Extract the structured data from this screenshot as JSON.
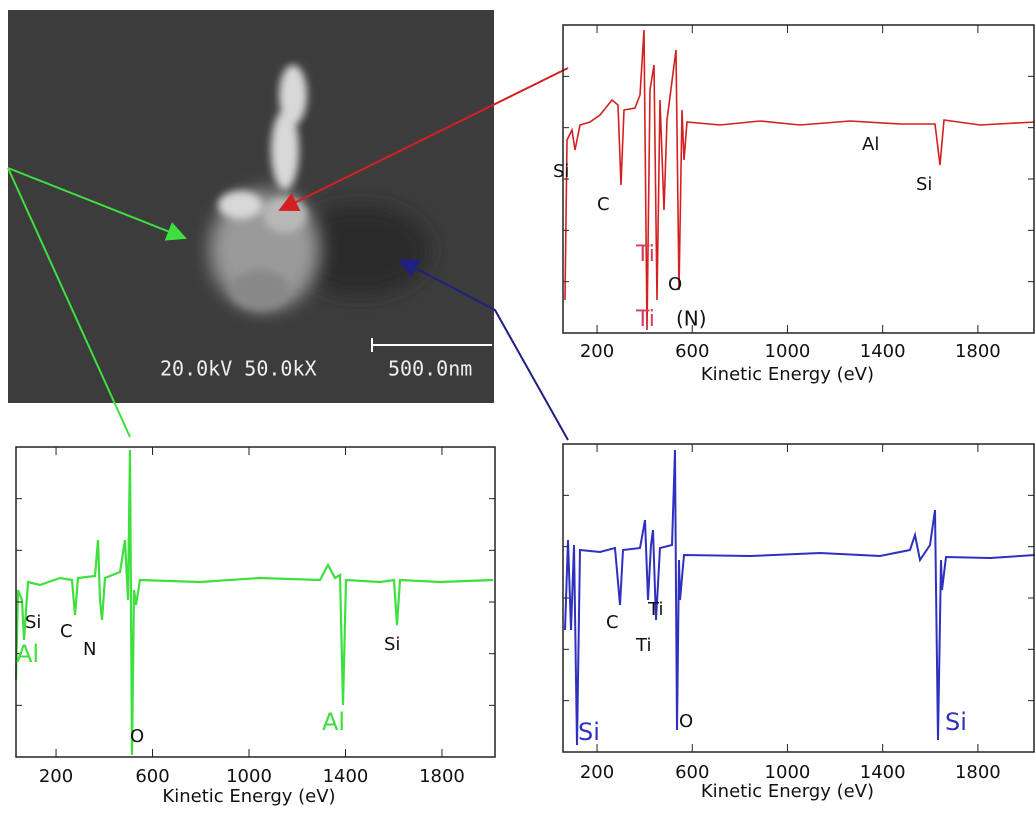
{
  "image": {
    "voltage_magnification": "20.0kV 50.0kX",
    "scale_bar": "500.0nm"
  },
  "chart_data": [
    {
      "type": "line",
      "color": "#d42020",
      "xlabel": "Kinetic Energy (eV)",
      "xlim": [
        57,
        2040
      ],
      "xticks": [
        200,
        600,
        1000,
        1400,
        1800
      ],
      "annotations": [
        {
          "label": "Si",
          "color": "#111"
        },
        {
          "label": "C",
          "color": "#111"
        },
        {
          "label": "Ti",
          "color": "#d04060"
        },
        {
          "label": "O",
          "color": "#111"
        },
        {
          "label": "Ti",
          "color": "#d04060"
        },
        {
          "label": "(N)",
          "color": "#111"
        },
        {
          "label": "Al",
          "color": "#111"
        },
        {
          "label": "Si",
          "color": "#111"
        }
      ]
    },
    {
      "type": "line",
      "color": "#3ee03e",
      "xlabel": "Kinetic Energy (eV)",
      "xlim": [
        34,
        2024
      ],
      "xticks": [
        200,
        600,
        1000,
        1400,
        1800
      ],
      "annotations": [
        {
          "label": "Si",
          "color": "#111"
        },
        {
          "label": "C",
          "color": "#111"
        },
        {
          "label": "N",
          "color": "#111"
        },
        {
          "label": "Al",
          "color": "#3ee03e"
        },
        {
          "label": "O",
          "color": "#111"
        },
        {
          "label": "Al",
          "color": "#3ee03e"
        },
        {
          "label": "Si",
          "color": "#111"
        }
      ]
    },
    {
      "type": "line",
      "color": "#3030c0",
      "xlabel": "Kinetic Energy (eV)",
      "xlim": [
        57,
        2040
      ],
      "xticks": [
        200,
        600,
        1000,
        1400,
        1800
      ],
      "annotations": [
        {
          "label": "C",
          "color": "#111"
        },
        {
          "label": "Ti",
          "color": "#111"
        },
        {
          "label": "Ti",
          "color": "#111"
        },
        {
          "label": "Si",
          "color": "#3030c0"
        },
        {
          "label": "O",
          "color": "#111"
        },
        {
          "label": "Si",
          "color": "#3030c0"
        }
      ]
    }
  ]
}
